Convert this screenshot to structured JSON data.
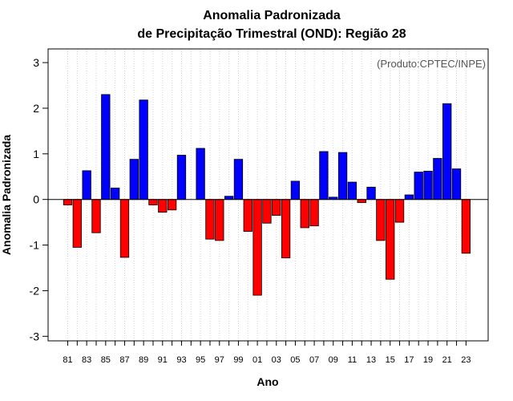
{
  "chart_data": {
    "type": "bar",
    "title_line1": "Anomalia Padronizada",
    "title_line2": "de Precipitação Trimestral (OND): Região 28",
    "xlabel": "Ano",
    "ylabel": "Anomalia Padronizada",
    "annotation": "(Produto:CPTEC/INPE)",
    "ylim": [
      -3.1,
      3.3
    ],
    "yticks": [
      -3,
      -2,
      -1,
      0,
      1,
      2,
      3
    ],
    "tick_labels": [
      "81",
      "83",
      "85",
      "87",
      "89",
      "91",
      "93",
      "95",
      "97",
      "99",
      "01",
      "03",
      "05",
      "07",
      "09",
      "11",
      "13",
      "15",
      "17",
      "19",
      "21",
      "23"
    ],
    "categories": [
      "81",
      "82",
      "83",
      "84",
      "85",
      "86",
      "87",
      "88",
      "89",
      "90",
      "91",
      "92",
      "93",
      "94",
      "95",
      "96",
      "97",
      "98",
      "99",
      "00",
      "01",
      "02",
      "03",
      "04",
      "05",
      "06",
      "07",
      "08",
      "09",
      "10",
      "11",
      "12",
      "13",
      "14",
      "15",
      "16",
      "17",
      "18",
      "19",
      "20",
      "21",
      "22",
      "23"
    ],
    "values": [
      -0.12,
      -1.05,
      0.63,
      -0.73,
      2.3,
      0.25,
      -1.27,
      0.88,
      2.18,
      -0.12,
      -0.28,
      -0.23,
      0.97,
      0.0,
      1.12,
      -0.87,
      -0.9,
      0.07,
      0.88,
      -0.7,
      -2.1,
      -0.52,
      -0.35,
      -1.28,
      0.4,
      -0.62,
      -0.58,
      1.05,
      0.05,
      1.03,
      0.38,
      -0.07,
      0.27,
      -0.9,
      -1.75,
      -0.5,
      0.1,
      0.6,
      0.62,
      0.9,
      2.1,
      0.67,
      -1.18
    ],
    "positive_color": "#0000ff",
    "negative_color": "#ff0000",
    "grid": "vertical dotted lines at each year",
    "legend": "none"
  }
}
